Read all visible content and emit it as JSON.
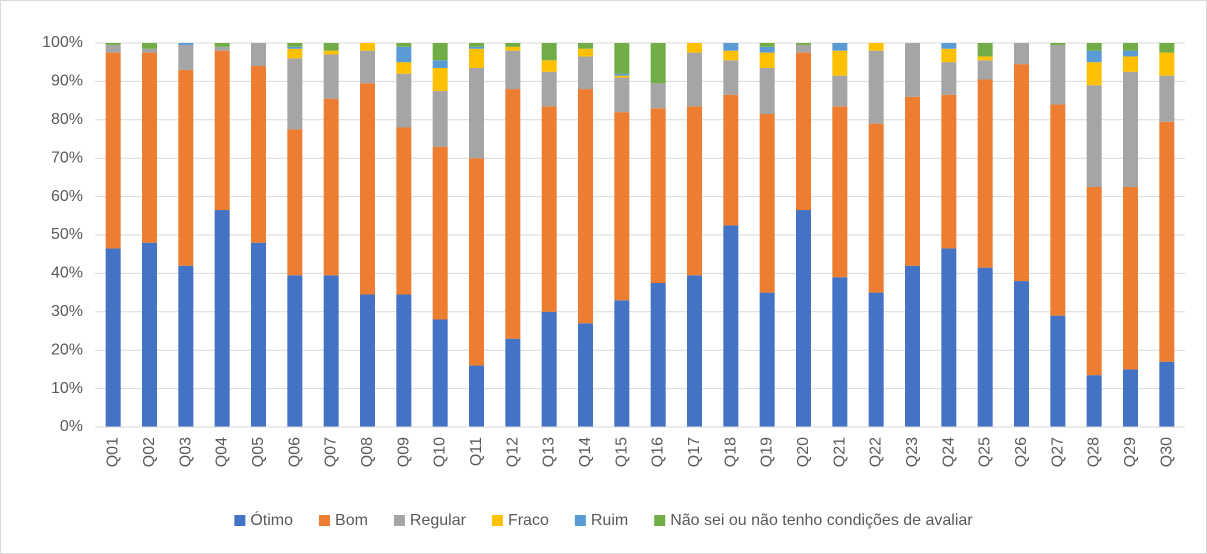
{
  "chart_data": {
    "type": "stacked_bar",
    "categories": [
      "Q01",
      "Q02",
      "Q03",
      "Q04",
      "Q05",
      "Q06",
      "Q07",
      "Q08",
      "Q09",
      "Q10",
      "Q11",
      "Q12",
      "Q13",
      "Q14",
      "Q15",
      "Q16",
      "Q17",
      "Q18",
      "Q19",
      "Q20",
      "Q21",
      "Q22",
      "Q23",
      "Q24",
      "Q25",
      "Q26",
      "Q27",
      "Q28",
      "Q29",
      "Q30"
    ],
    "series": [
      {
        "name": "Ótimo",
        "color": "#4472c4",
        "values": [
          46.5,
          48,
          42,
          56.5,
          48,
          39.5,
          39.5,
          34.5,
          34.5,
          28,
          16,
          23,
          30,
          27,
          33,
          37.5,
          39.5,
          52.5,
          35,
          56.5,
          39,
          35,
          42,
          46.5,
          41.5,
          38,
          29,
          13.5,
          15,
          17
        ]
      },
      {
        "name": "Bom",
        "color": "#ed7d31",
        "values": [
          51,
          49.5,
          51,
          41.5,
          46,
          38,
          46,
          55,
          43.5,
          45,
          54,
          65,
          53.5,
          61,
          49,
          45.5,
          44,
          34,
          46.5,
          41,
          44.5,
          44,
          44,
          40,
          49,
          56.5,
          55,
          49,
          47.5,
          62.5
        ]
      },
      {
        "name": "Regular",
        "color": "#a5a5a5",
        "values": [
          2,
          1,
          6.5,
          1,
          6,
          18.5,
          11.5,
          8.5,
          14,
          14.5,
          23.5,
          10,
          9,
          8.5,
          9,
          6.5,
          14,
          9,
          12,
          2,
          8,
          19,
          14,
          8.5,
          5,
          5.5,
          15.5,
          26.5,
          30,
          12
        ]
      },
      {
        "name": "Fraco",
        "color": "#ffc000",
        "values": [
          0,
          0,
          0,
          0,
          0,
          2.5,
          1,
          2,
          3,
          6,
          5,
          1,
          3,
          2,
          0.5,
          0,
          2.5,
          2.5,
          4,
          0,
          6.5,
          2,
          0,
          3.5,
          1,
          0,
          0,
          6,
          4,
          6
        ]
      },
      {
        "name": "Ruim",
        "color": "#5b9bd5",
        "values": [
          0,
          0,
          0.5,
          0,
          0,
          0.5,
          0,
          0,
          4,
          2,
          0.5,
          0,
          0,
          0,
          0.5,
          0,
          0,
          2,
          1.5,
          0,
          2,
          0,
          0,
          1.5,
          0,
          0,
          0,
          3,
          1.5,
          0
        ]
      },
      {
        "name": "Não sei ou não tenho condições de avaliar",
        "color": "#70ad47",
        "values": [
          0.5,
          1.5,
          0,
          1,
          0,
          1,
          2,
          0,
          1,
          4.5,
          1,
          1,
          4.5,
          1.5,
          8,
          10.5,
          0,
          0,
          1,
          0.5,
          0,
          0,
          0,
          0,
          3.5,
          0,
          0.5,
          2,
          2,
          2.5
        ]
      }
    ],
    "ylim": [
      0,
      100
    ],
    "yticks": [
      {
        "value": 0,
        "label": "0%"
      },
      {
        "value": 10,
        "label": "10%"
      },
      {
        "value": 20,
        "label": "20%"
      },
      {
        "value": 30,
        "label": "30%"
      },
      {
        "value": 40,
        "label": "40%"
      },
      {
        "value": 50,
        "label": "50%"
      },
      {
        "value": 60,
        "label": "60%"
      },
      {
        "value": 70,
        "label": "70%"
      },
      {
        "value": 80,
        "label": "80%"
      },
      {
        "value": 90,
        "label": "90%"
      },
      {
        "value": 100,
        "label": "100%"
      }
    ],
    "legend": "bottom"
  }
}
